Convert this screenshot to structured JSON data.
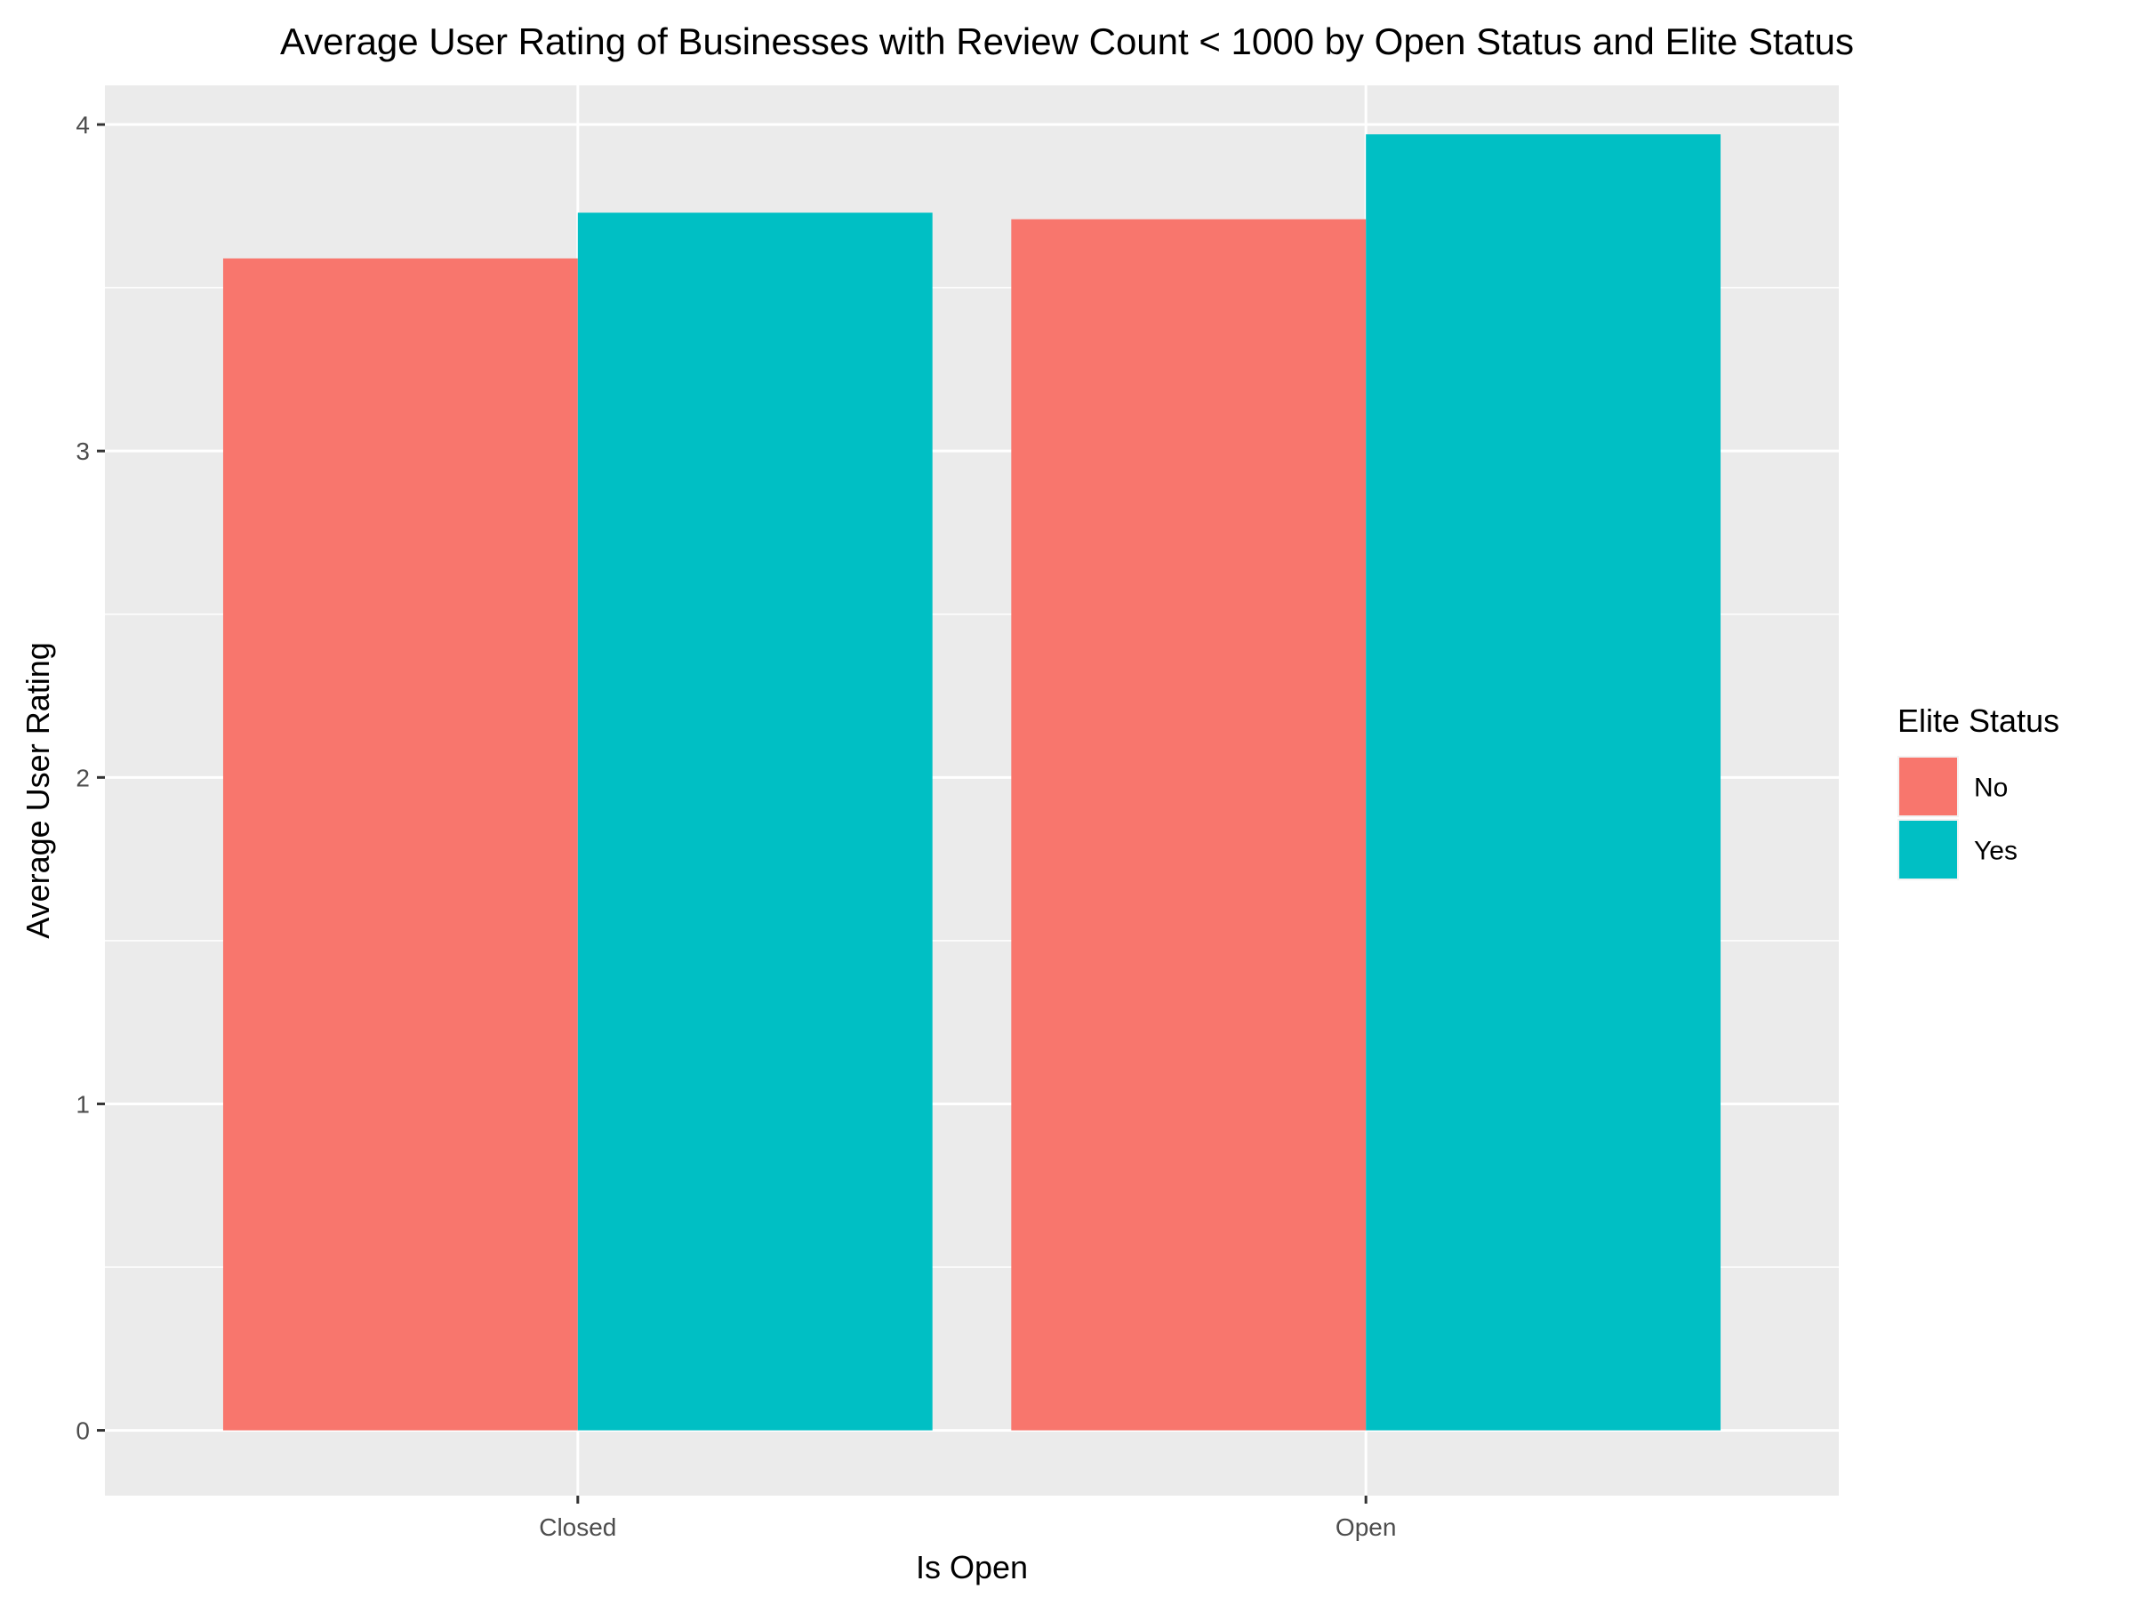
{
  "chart_data": {
    "type": "bar",
    "title": "Average User Rating of Businesses with Review Count < 1000 by Open Status and Elite Status",
    "xlabel": "Is Open",
    "ylabel": "Average User Rating",
    "categories": [
      "Closed",
      "Open"
    ],
    "series": [
      {
        "name": "No",
        "color": "#F8766D",
        "values": [
          3.59,
          3.71
        ]
      },
      {
        "name": "Yes",
        "color": "#00BFC4",
        "values": [
          3.73,
          3.97
        ]
      }
    ],
    "ylim": [
      -0.2,
      4.12
    ],
    "yticks": [
      0,
      1,
      2,
      3,
      4
    ],
    "grid": true,
    "panel_background": "#EBEBEB",
    "legend": {
      "title": "Elite Status",
      "position": "right",
      "entries": [
        "No",
        "Yes"
      ]
    }
  }
}
